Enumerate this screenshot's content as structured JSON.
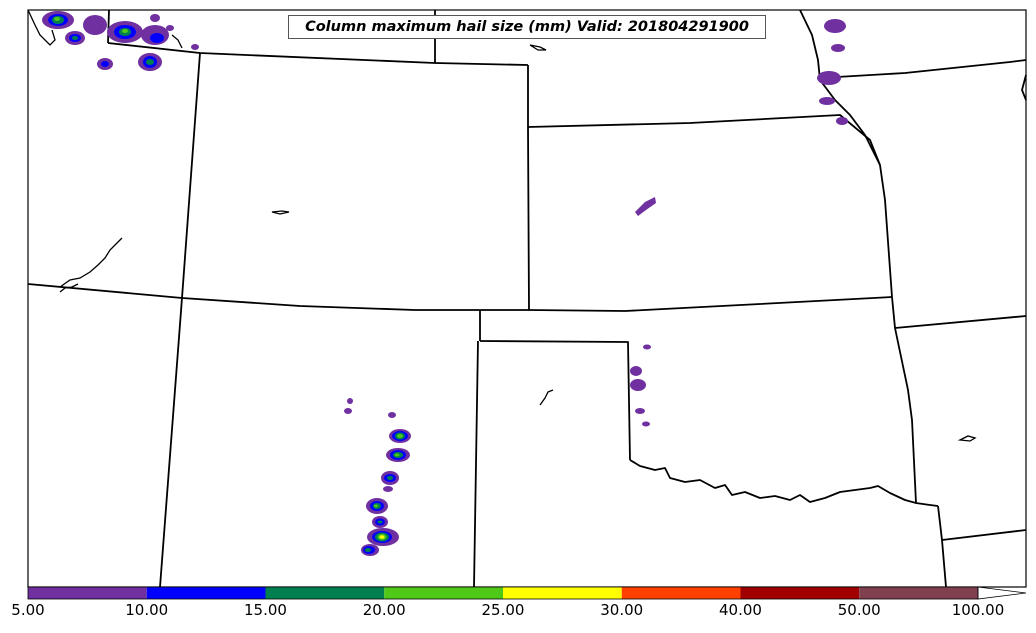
{
  "title": "Column maximum hail size (mm) Valid: 201804291900",
  "colorbar": {
    "labels": [
      "5.00",
      "10.00",
      "15.00",
      "20.00",
      "25.00",
      "30.00",
      "40.00",
      "50.00",
      "100.00"
    ],
    "colors": [
      "#7030a0",
      "#0000ff",
      "#008050",
      "#50c818",
      "#ffff00",
      "#ff4000",
      "#a00000",
      "#804050"
    ],
    "extend": "max"
  },
  "colors": {
    "boundary": "#000000",
    "hail_low": "#7030a0",
    "hail_mid": "#0000ff",
    "hail_green": "#008050",
    "hail_lime": "#50c818",
    "hail_yellow": "#ffff00"
  }
}
